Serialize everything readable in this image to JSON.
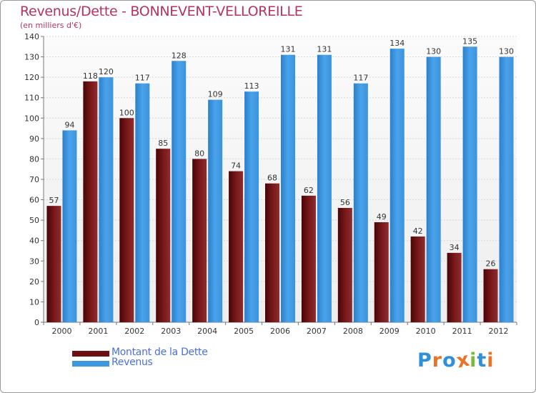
{
  "title": "Revenus/Dette - BONNEVENT-VELLOREILLE",
  "subtitle": "(en milliers d'€)",
  "legend": [
    {
      "label": "Montant de la Dette",
      "color": "#6e0f12"
    },
    {
      "label": "Revenus",
      "color": "#3d98e0"
    }
  ],
  "logo": {
    "text": "Proxiti",
    "colors": [
      "#2f8fd8",
      "#e8742a",
      "#2f8fd8",
      "#e8742a",
      "#7cb83a",
      "#2f8fd8",
      "#e8742a"
    ]
  },
  "chart_data": {
    "type": "bar",
    "title": "Revenus/Dette - BONNEVENT-VELLOREILLE",
    "subtitle": "(en milliers d'€)",
    "xlabel": "",
    "ylabel": "",
    "ylim": [
      0,
      140
    ],
    "yticks": [
      0,
      10,
      20,
      30,
      40,
      50,
      60,
      70,
      80,
      90,
      100,
      110,
      120,
      130,
      140
    ],
    "grid": true,
    "legend_position": "bottom-left",
    "categories": [
      "2000",
      "2001",
      "2002",
      "2003",
      "2004",
      "2005",
      "2006",
      "2007",
      "2008",
      "2009",
      "2010",
      "2011",
      "2012"
    ],
    "series": [
      {
        "name": "Montant de la Dette",
        "color": "#7a1a1c",
        "values": [
          57,
          118,
          100,
          85,
          80,
          74,
          68,
          62,
          56,
          49,
          42,
          34,
          26
        ]
      },
      {
        "name": "Revenus",
        "color": "#3d98e0",
        "values": [
          94,
          120,
          117,
          128,
          109,
          113,
          131,
          131,
          117,
          134,
          130,
          135,
          130
        ]
      }
    ]
  }
}
